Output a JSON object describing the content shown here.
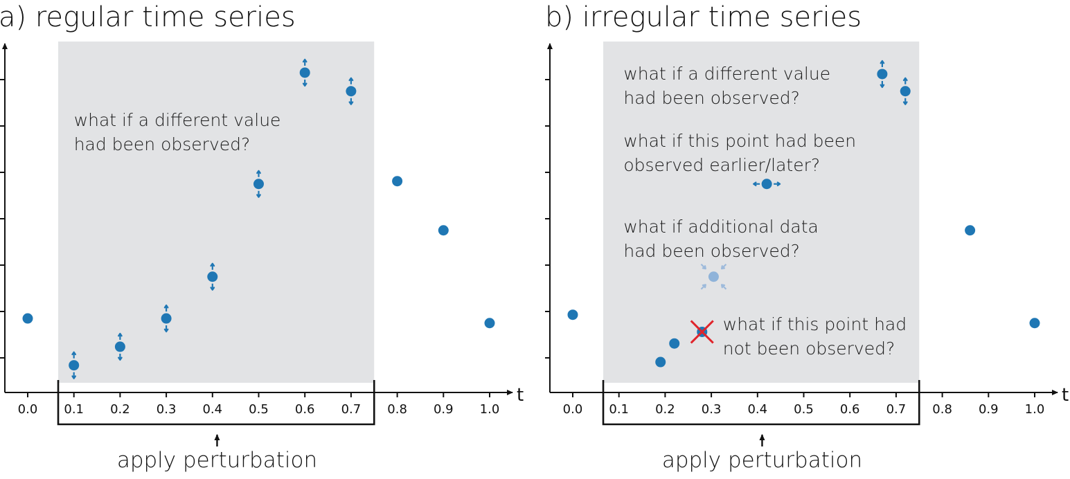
{
  "colors": {
    "point": "#1f77b4",
    "point_faded": "#8fb3d9",
    "arrow_faded": "#9dbadb",
    "shade": "#e2e3e5",
    "axis": "#111111",
    "cross": "#e0242b"
  },
  "chart_data": [
    {
      "type": "scatter",
      "panel": "a",
      "title": "a) regular time series",
      "xlabel": "t",
      "ylabel": "",
      "xlim": [
        -0.05,
        1.06
      ],
      "ylim": [
        0,
        7.4
      ],
      "x_ticks": [
        0.0,
        0.1,
        0.2,
        0.3,
        0.4,
        0.5,
        0.6,
        0.7,
        0.8,
        0.9,
        1.0
      ],
      "x_tick_labels": [
        "0.0",
        "0.1",
        "0.2",
        "0.3",
        "0.4",
        "0.5",
        "0.6",
        "0.7",
        "0.8",
        "0.9",
        "1.0"
      ],
      "y_ticks": [
        1,
        2,
        3,
        4,
        5,
        6,
        7
      ],
      "y_tick_labels": [],
      "shaded_region": {
        "x_start": 0.066,
        "x_end": 0.75,
        "label": "apply perturbation",
        "arrow_at": 0.41
      },
      "points": [
        {
          "x": 0.0,
          "y": 1.85,
          "marker": "plain"
        },
        {
          "x": 0.1,
          "y": 0.84,
          "marker": "vertical-arrows"
        },
        {
          "x": 0.2,
          "y": 1.24,
          "marker": "vertical-arrows"
        },
        {
          "x": 0.3,
          "y": 1.85,
          "marker": "vertical-arrows"
        },
        {
          "x": 0.4,
          "y": 2.75,
          "marker": "vertical-arrows"
        },
        {
          "x": 0.5,
          "y": 4.75,
          "marker": "vertical-arrows"
        },
        {
          "x": 0.6,
          "y": 7.15,
          "marker": "vertical-arrows"
        },
        {
          "x": 0.7,
          "y": 6.75,
          "marker": "vertical-arrows"
        },
        {
          "x": 0.8,
          "y": 4.81,
          "marker": "plain"
        },
        {
          "x": 0.9,
          "y": 3.75,
          "marker": "plain"
        },
        {
          "x": 1.0,
          "y": 1.75,
          "marker": "plain"
        }
      ],
      "annotations": [
        {
          "lines": [
            "what if a different value",
            "had been observed?"
          ],
          "x": 0.1,
          "y": 6.0
        }
      ]
    },
    {
      "type": "scatter",
      "panel": "b",
      "title": "b) irregular time series",
      "xlabel": "t",
      "ylabel": "",
      "xlim": [
        -0.05,
        1.06
      ],
      "ylim": [
        0,
        7.4
      ],
      "x_ticks": [
        0.0,
        0.1,
        0.2,
        0.3,
        0.4,
        0.5,
        0.6,
        0.7,
        0.8,
        0.9,
        1.0
      ],
      "x_tick_labels": [
        "0.0",
        "0.1",
        "0.2",
        "0.3",
        "0.4",
        "0.5",
        "0.6",
        "0.7",
        "0.8",
        "0.9",
        "1.0"
      ],
      "y_ticks": [
        1,
        2,
        3,
        4,
        5,
        6,
        7
      ],
      "y_tick_labels": [],
      "shaded_region": {
        "x_start": 0.066,
        "x_end": 0.75,
        "label": "apply perturbation",
        "arrow_at": 0.41
      },
      "points": [
        {
          "x": 0.0,
          "y": 1.93,
          "marker": "plain"
        },
        {
          "x": 0.19,
          "y": 0.91,
          "marker": "plain"
        },
        {
          "x": 0.22,
          "y": 1.31,
          "marker": "plain"
        },
        {
          "x": 0.28,
          "y": 1.56,
          "marker": "crossed-out"
        },
        {
          "x": 0.305,
          "y": 2.75,
          "marker": "added"
        },
        {
          "x": 0.42,
          "y": 4.75,
          "marker": "horizontal-arrows"
        },
        {
          "x": 0.67,
          "y": 7.12,
          "marker": "vertical-arrows"
        },
        {
          "x": 0.72,
          "y": 6.75,
          "marker": "vertical-arrows"
        },
        {
          "x": 0.86,
          "y": 3.75,
          "marker": "plain"
        },
        {
          "x": 1.0,
          "y": 1.75,
          "marker": "plain"
        }
      ],
      "annotations": [
        {
          "lines": [
            "what if a different value",
            "had been observed?"
          ],
          "x": 0.11,
          "y": 7.0
        },
        {
          "lines": [
            "what if this point had been",
            "observed earlier/later?"
          ],
          "x": 0.11,
          "y": 5.55
        },
        {
          "lines": [
            "what if additional data",
            "had been observed?"
          ],
          "x": 0.11,
          "y": 3.7
        },
        {
          "lines": [
            "what if this point had",
            "not been observed?"
          ],
          "x": 0.325,
          "y": 1.6
        }
      ]
    }
  ]
}
